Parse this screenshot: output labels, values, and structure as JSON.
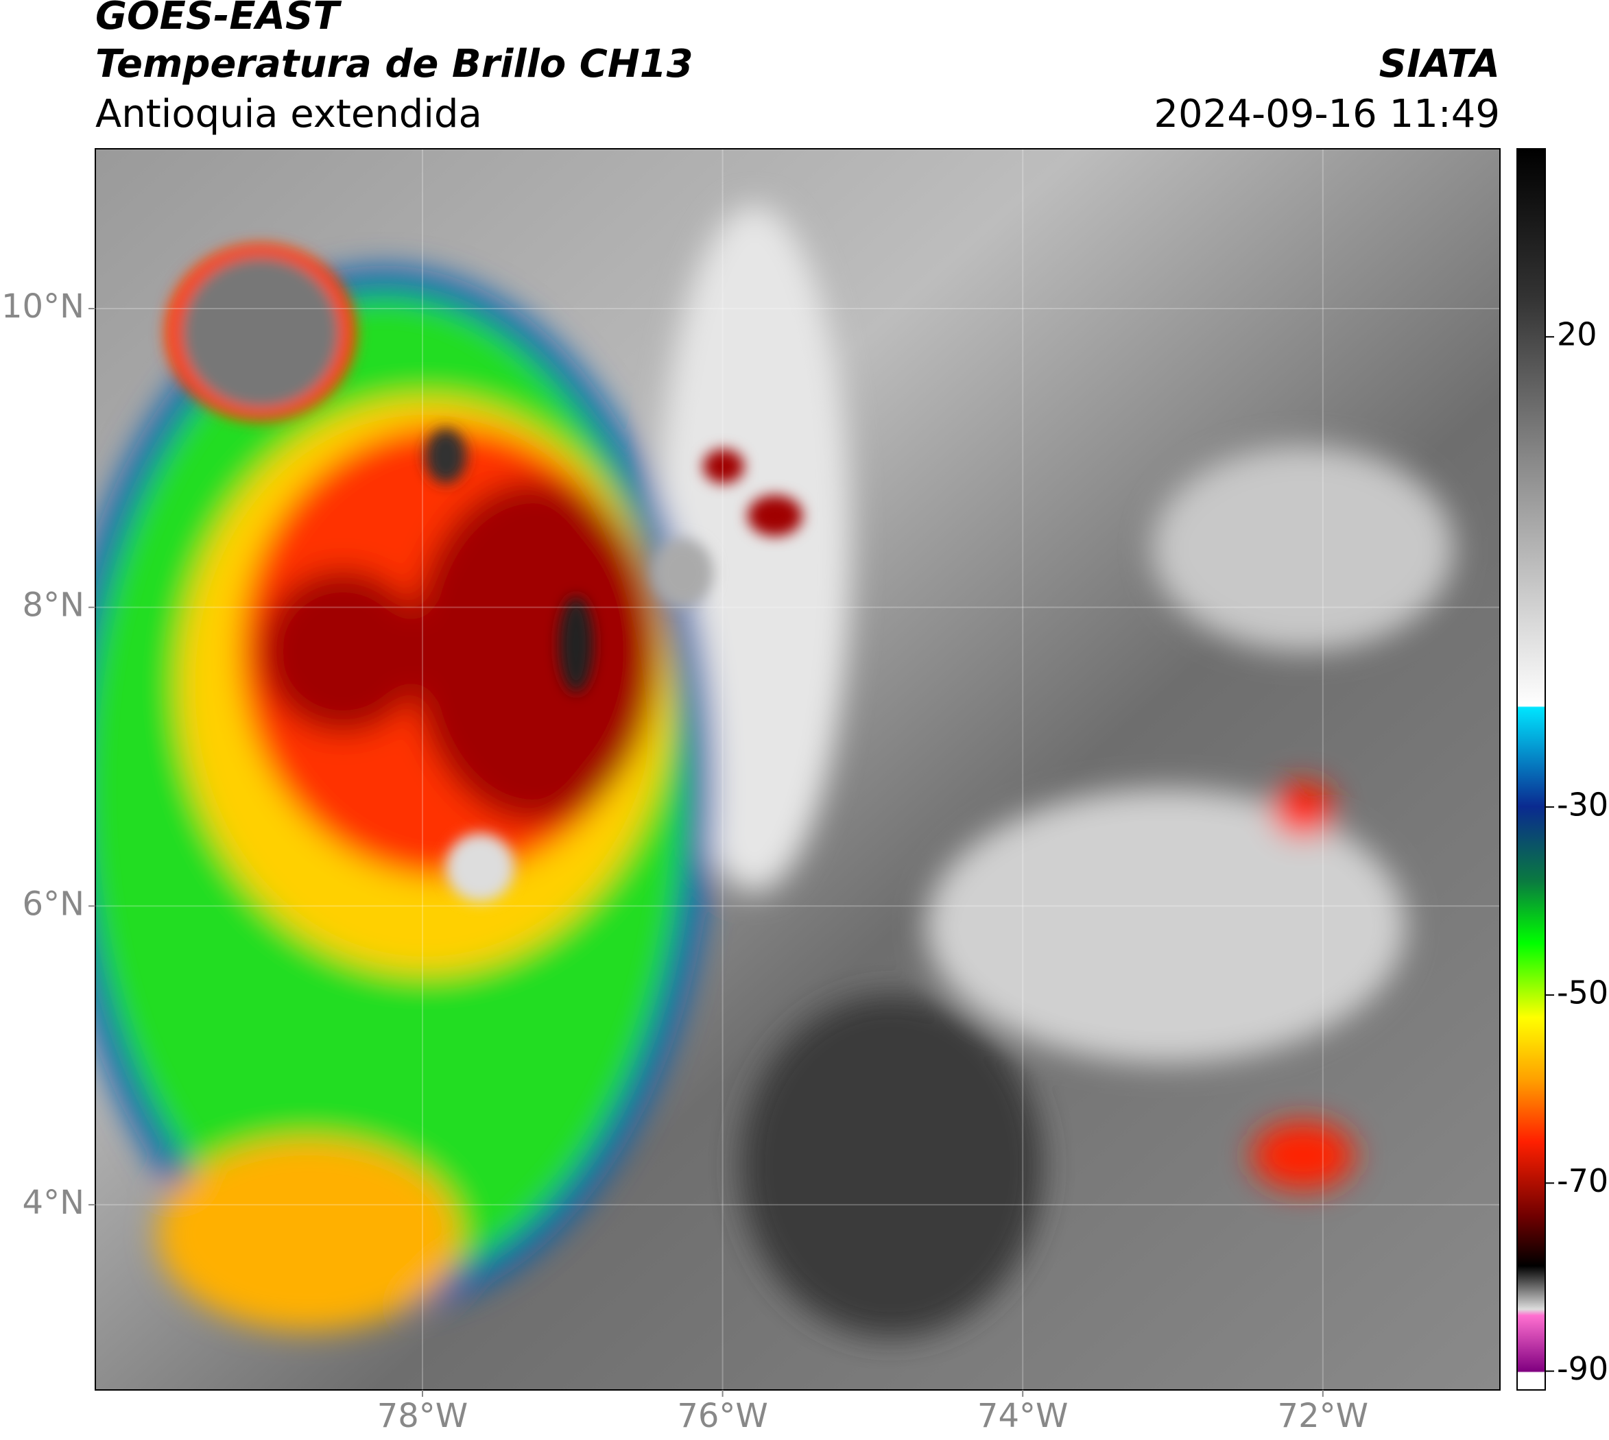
{
  "header": {
    "title": "GOES-EAST",
    "subtitle": "Temperatura de Brillo CH13",
    "region": "Antioquia extendida",
    "source": "SIATA",
    "datetime": "2024-09-16 11:49"
  },
  "chart_data": {
    "type": "map",
    "xlim": [
      -80.18,
      -70.82
    ],
    "ylim": [
      2.76,
      11.07
    ],
    "xticks": [
      {
        "value": -78,
        "label": "78°W"
      },
      {
        "value": -76,
        "label": "76°W"
      },
      {
        "value": -74,
        "label": "74°W"
      },
      {
        "value": -72,
        "label": "72°W"
      }
    ],
    "yticks": [
      {
        "value": 4,
        "label": "4°N"
      },
      {
        "value": 6,
        "label": "6°N"
      },
      {
        "value": 8,
        "label": "8°N"
      },
      {
        "value": 10,
        "label": "10°N"
      }
    ],
    "grid": true,
    "colorbar": {
      "lim": [
        -92,
        40
      ],
      "ticks": [
        -90,
        -70,
        -50,
        -30,
        20
      ]
    }
  }
}
